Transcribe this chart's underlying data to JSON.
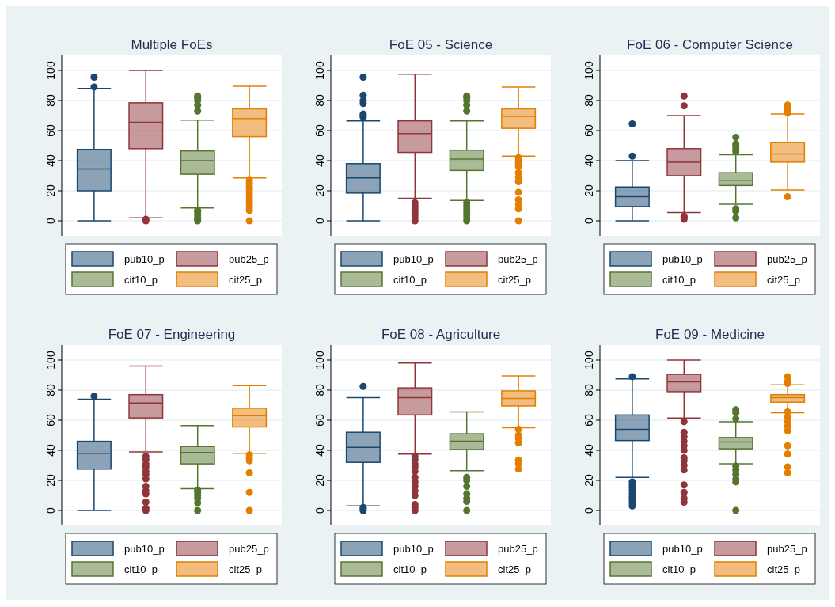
{
  "chart_data": [
    {
      "type": "box",
      "title": "Multiple FoEs",
      "categories": [
        null
      ],
      "ylim": [
        -10,
        110
      ],
      "yticks": [
        0,
        20,
        40,
        60,
        80,
        100
      ],
      "grid": "y",
      "legend": "bottom",
      "series": [
        {
          "name": "pub10_p",
          "color": "#1a476f",
          "boxes": [
            {
              "low": 0,
              "q1": 20,
              "median": 34.5,
              "q3": 47.5,
              "high": 88,
              "outliers": [
                89,
                95.5
              ]
            }
          ]
        },
        {
          "name": "pub25_p",
          "color": "#90353b",
          "boxes": [
            {
              "low": 2,
              "q1": 48,
              "median": 65.5,
              "q3": 78.5,
              "high": 100,
              "outliers": [
                0,
                1
              ]
            }
          ]
        },
        {
          "name": "cit10_p",
          "color": "#55752f",
          "boxes": [
            {
              "low": 8.5,
              "q1": 31,
              "median": 40,
              "q3": 46.5,
              "high": 67,
              "outliers": [
                0,
                1,
                2,
                4,
                6,
                7,
                73,
                77,
                80,
                82,
                83
              ]
            }
          ]
        },
        {
          "name": "cit25_p",
          "color": "#e37e00",
          "boxes": [
            {
              "low": 28.5,
              "q1": 56,
              "median": 68,
              "q3": 74.5,
              "high": 89.5,
              "outliers": [
                0,
                7,
                9,
                11,
                13,
                15,
                17,
                19,
                21,
                23,
                25,
                27
              ]
            }
          ]
        }
      ]
    },
    {
      "type": "box",
      "title": "FoE 05 - Science",
      "categories": [
        null
      ],
      "ylim": [
        -10,
        110
      ],
      "yticks": [
        0,
        20,
        40,
        60,
        80,
        100
      ],
      "grid": "y",
      "legend": "bottom",
      "series": [
        {
          "name": "pub10_p",
          "color": "#1a476f",
          "boxes": [
            {
              "low": 0,
              "q1": 18.5,
              "median": 28.5,
              "q3": 38,
              "high": 66.5,
              "outliers": [
                69,
                70,
                71,
                78,
                80,
                83.5,
                95.5
              ]
            }
          ]
        },
        {
          "name": "pub25_p",
          "color": "#90353b",
          "boxes": [
            {
              "low": 15,
              "q1": 45.5,
              "median": 58,
              "q3": 66.5,
              "high": 97.5,
              "outliers": [
                0,
                2,
                4,
                6,
                8,
                10,
                12
              ]
            }
          ]
        },
        {
          "name": "cit10_p",
          "color": "#55752f",
          "boxes": [
            {
              "low": 13.5,
              "q1": 33.5,
              "median": 41,
              "q3": 47,
              "high": 66.5,
              "outliers": [
                0,
                2,
                4,
                6,
                8,
                10,
                12,
                73,
                77,
                80,
                82,
                83
              ]
            }
          ]
        },
        {
          "name": "cit25_p",
          "color": "#e37e00",
          "boxes": [
            {
              "low": 43,
              "q1": 61.5,
              "median": 69.5,
              "q3": 74.5,
              "high": 89,
              "outliers": [
                0,
                8,
                11,
                14,
                19,
                26,
                29,
                32,
                36,
                38,
                40,
                42
              ]
            }
          ]
        }
      ]
    },
    {
      "type": "box",
      "title": "FoE 06 - Computer Science",
      "categories": [
        null
      ],
      "ylim": [
        -10,
        110
      ],
      "yticks": [
        0,
        20,
        40,
        60,
        80,
        100
      ],
      "grid": "y",
      "legend": "bottom",
      "series": [
        {
          "name": "pub10_p",
          "color": "#1a476f",
          "boxes": [
            {
              "low": 0,
              "q1": 9.5,
              "median": 16,
              "q3": 22.5,
              "high": 40,
              "outliers": [
                43,
                64.5
              ]
            }
          ]
        },
        {
          "name": "pub25_p",
          "color": "#90353b",
          "boxes": [
            {
              "low": 5.5,
              "q1": 30,
              "median": 39,
              "q3": 48,
              "high": 70,
              "outliers": [
                1,
                2,
                3,
                76.5,
                83
              ]
            }
          ]
        },
        {
          "name": "cit10_p",
          "color": "#55752f",
          "boxes": [
            {
              "low": 11,
              "q1": 23.5,
              "median": 27,
              "q3": 32,
              "high": 44,
              "outliers": [
                2,
                6.5,
                8,
                46,
                48,
                50,
                51,
                55.5
              ]
            }
          ]
        },
        {
          "name": "cit25_p",
          "color": "#e37e00",
          "boxes": [
            {
              "low": 20.5,
              "q1": 39,
              "median": 44.5,
              "q3": 52,
              "high": 71,
              "outliers": [
                16,
                72,
                73,
                75,
                77
              ]
            }
          ]
        }
      ]
    },
    {
      "type": "box",
      "title": "FoE 07 - Engineering",
      "categories": [
        null
      ],
      "ylim": [
        -10,
        110
      ],
      "yticks": [
        0,
        20,
        40,
        60,
        80,
        100
      ],
      "grid": "y",
      "legend": "bottom",
      "series": [
        {
          "name": "pub10_p",
          "color": "#1a476f",
          "boxes": [
            {
              "low": 0,
              "q1": 27.5,
              "median": 38,
              "q3": 46,
              "high": 74,
              "outliers": [
                76
              ]
            }
          ]
        },
        {
          "name": "pub25_p",
          "color": "#90353b",
          "boxes": [
            {
              "low": 39,
              "q1": 61.5,
              "median": 71.5,
              "q3": 77,
              "high": 96,
              "outliers": [
                0,
                1.5,
                5.5,
                11,
                13,
                16,
                21,
                24,
                26,
                29,
                31,
                34,
                36
              ]
            }
          ]
        },
        {
          "name": "cit10_p",
          "color": "#55752f",
          "boxes": [
            {
              "low": 14.5,
              "q1": 31,
              "median": 38.5,
              "q3": 42.5,
              "high": 56.5,
              "outliers": [
                0,
                5,
                8,
                10,
                12,
                13.5
              ]
            }
          ]
        },
        {
          "name": "cit25_p",
          "color": "#e37e00",
          "boxes": [
            {
              "low": 38,
              "q1": 55.5,
              "median": 63,
              "q3": 68,
              "high": 83,
              "outliers": [
                0,
                12,
                25,
                33,
                35,
                37
              ]
            }
          ]
        }
      ]
    },
    {
      "type": "box",
      "title": "FoE 08 - Agriculture",
      "categories": [
        null
      ],
      "ylim": [
        -10,
        110
      ],
      "yticks": [
        0,
        20,
        40,
        60,
        80,
        100
      ],
      "grid": "y",
      "legend": "bottom",
      "series": [
        {
          "name": "pub10_p",
          "color": "#1a476f",
          "boxes": [
            {
              "low": 3,
              "q1": 32,
              "median": 42,
              "q3": 52,
              "high": 75,
              "outliers": [
                0,
                1,
                2,
                82.5
              ]
            }
          ]
        },
        {
          "name": "pub25_p",
          "color": "#90353b",
          "boxes": [
            {
              "low": 37.5,
              "q1": 63.5,
              "median": 75,
              "q3": 81.5,
              "high": 98,
              "outliers": [
                0,
                2,
                4,
                10,
                13,
                16,
                19,
                22,
                26,
                29,
                31,
                34,
                36
              ]
            }
          ]
        },
        {
          "name": "cit10_p",
          "color": "#55752f",
          "boxes": [
            {
              "low": 26.5,
              "q1": 40.5,
              "median": 46,
              "q3": 51,
              "high": 65.5,
              "outliers": [
                0,
                6,
                8,
                11,
                16,
                20,
                22
              ]
            }
          ]
        },
        {
          "name": "cit25_p",
          "color": "#e37e00",
          "boxes": [
            {
              "low": 55,
              "q1": 69.5,
              "median": 74.5,
              "q3": 79.5,
              "high": 89.5,
              "outliers": [
                27.5,
                31,
                33.5,
                45,
                48,
                50,
                54
              ]
            }
          ]
        }
      ]
    },
    {
      "type": "box",
      "title": "FoE 09 - Medicine",
      "categories": [
        null
      ],
      "ylim": [
        -10,
        110
      ],
      "yticks": [
        0,
        20,
        40,
        60,
        80,
        100
      ],
      "grid": "y",
      "legend": "bottom",
      "series": [
        {
          "name": "pub10_p",
          "color": "#1a476f",
          "boxes": [
            {
              "low": 22,
              "q1": 46.5,
              "median": 54,
              "q3": 63.5,
              "high": 87.5,
              "outliers": [
                3,
                5,
                7,
                9,
                11,
                13,
                15,
                17,
                19,
                89
              ]
            }
          ]
        },
        {
          "name": "pub25_p",
          "color": "#90353b",
          "boxes": [
            {
              "low": 61.5,
              "q1": 79,
              "median": 85.5,
              "q3": 90.5,
              "high": 100,
              "outliers": [
                5.5,
                8,
                12,
                17,
                27,
                30,
                33,
                35,
                40,
                43,
                46,
                49,
                52,
                59
              ]
            }
          ]
        },
        {
          "name": "cit10_p",
          "color": "#55752f",
          "boxes": [
            {
              "low": 31,
              "q1": 41,
              "median": 45.5,
              "q3": 48.5,
              "high": 59,
              "outliers": [
                0,
                19,
                21,
                24,
                27,
                29.5,
                61,
                65,
                67
              ]
            }
          ]
        },
        {
          "name": "cit25_p",
          "color": "#e37e00",
          "boxes": [
            {
              "low": 65,
              "q1": 72,
              "median": 75,
              "q3": 77,
              "high": 83.5,
              "outliers": [
                25,
                29,
                37.5,
                43,
                53,
                56,
                59,
                62,
                65.5,
                84.5,
                86,
                89
              ]
            }
          ]
        }
      ]
    }
  ]
}
